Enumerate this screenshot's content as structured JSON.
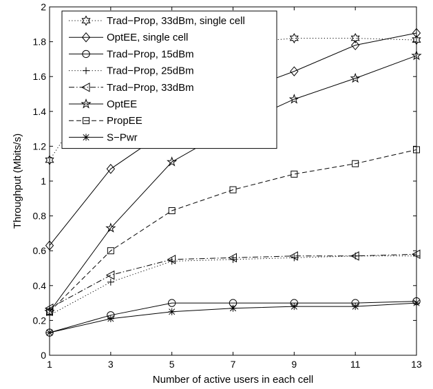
{
  "chart_data": {
    "type": "line",
    "xlabel": "Number of active users in each cell",
    "ylabel": "Throughput (Mbits/s)",
    "title": "",
    "xlim": [
      1,
      13
    ],
    "ylim": [
      0,
      2
    ],
    "xticks": [
      1,
      3,
      5,
      7,
      9,
      11,
      13
    ],
    "yticks": [
      0,
      0.2,
      0.4,
      0.6,
      0.8,
      1,
      1.2,
      1.4,
      1.6,
      1.8,
      2
    ],
    "ytick_labels": [
      "0",
      "0.2",
      "0.4",
      "0.6",
      "0.8",
      "1",
      "1.2",
      "1.4",
      "1.6",
      "1.8",
      "2"
    ],
    "grid": false,
    "legend_position": "top-left",
    "line_color": "#000000",
    "x": [
      1,
      3,
      5,
      7,
      9,
      11,
      13
    ],
    "series": [
      {
        "name": "Trad−Prop, 33dBm, single cell",
        "marker": "hexagram",
        "linestyle": "dotted",
        "values": [
          1.12,
          1.65,
          1.72,
          1.79,
          1.82,
          1.82,
          1.81
        ]
      },
      {
        "name": "OptEE, single cell",
        "marker": "diamond",
        "linestyle": "solid",
        "values": [
          0.63,
          1.07,
          1.31,
          1.5,
          1.63,
          1.78,
          1.85
        ]
      },
      {
        "name": "Trad−Prop, 15dBm",
        "marker": "circle",
        "linestyle": "solid",
        "values": [
          0.13,
          0.23,
          0.3,
          0.3,
          0.3,
          0.3,
          0.31
        ]
      },
      {
        "name": "Trad−Prop, 25dBm",
        "marker": "plus",
        "linestyle": "dotted",
        "values": [
          0.23,
          0.42,
          0.54,
          0.55,
          0.56,
          0.57,
          0.57
        ]
      },
      {
        "name": "Trad−Prop, 33dBm",
        "marker": "triangle-left",
        "linestyle": "dashdot",
        "values": [
          0.27,
          0.46,
          0.55,
          0.56,
          0.57,
          0.57,
          0.58
        ]
      },
      {
        "name": "OptEE",
        "marker": "pentagram",
        "linestyle": "solid",
        "values": [
          0.25,
          0.73,
          1.11,
          1.31,
          1.47,
          1.59,
          1.72
        ]
      },
      {
        "name": "PropEE",
        "marker": "square",
        "linestyle": "dashed",
        "values": [
          0.25,
          0.6,
          0.83,
          0.95,
          1.04,
          1.1,
          1.18
        ]
      },
      {
        "name": "S−Pwr",
        "marker": "asterisk",
        "linestyle": "solid",
        "values": [
          0.13,
          0.21,
          0.25,
          0.27,
          0.28,
          0.28,
          0.3
        ]
      }
    ]
  }
}
